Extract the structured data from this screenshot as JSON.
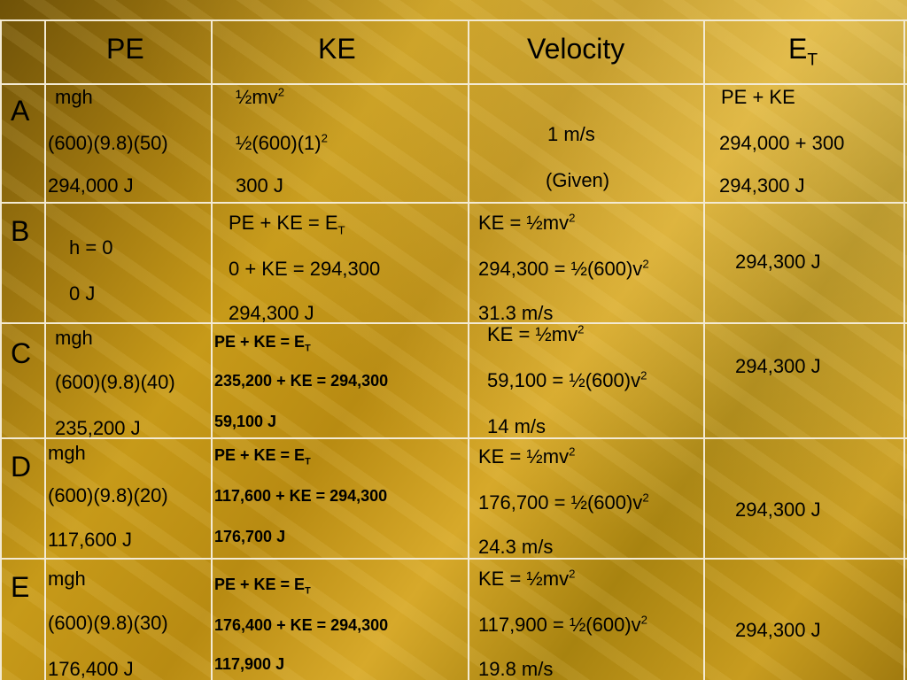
{
  "headers": [
    "PE",
    "KE",
    "Velocity",
    "E",
    "T"
  ],
  "rows": [
    {
      "label": "A",
      "pe": [
        "mgh",
        "(600)(9.8)(50)",
        "294,000 J"
      ],
      "ke": [
        "½mv",
        "2",
        "½(600)(1)",
        "2",
        "300 J"
      ],
      "velocity": [
        "1 m/s",
        "(Given)"
      ],
      "et": [
        "PE + KE",
        "294,000 + 300",
        "294,300 J"
      ]
    },
    {
      "label": "B",
      "pe": [
        "h = 0",
        "0 J"
      ],
      "ke": [
        "PE + KE = E",
        "T",
        "0 + KE = 294,300",
        "294,300 J"
      ],
      "velocity": [
        "KE = ½mv",
        "2",
        "294,300 = ½(600)v",
        "2",
        "31.3 m/s"
      ],
      "et": [
        "294,300 J"
      ]
    },
    {
      "label": "C",
      "pe": [
        "mgh",
        "(600)(9.8)(40)",
        "235,200 J"
      ],
      "ke": [
        "PE + KE = E",
        "T",
        "235,200 + KE = 294,300",
        "59,100 J"
      ],
      "velocity": [
        "KE = ½mv",
        "2",
        "59,100 = ½(600)v",
        "2",
        "14 m/s"
      ],
      "et": [
        "294,300 J"
      ]
    },
    {
      "label": "D",
      "pe": [
        "mgh",
        "(600)(9.8)(20)",
        "117,600 J"
      ],
      "ke": [
        "PE + KE = E",
        "T",
        "117,600 + KE = 294,300",
        "176,700 J"
      ],
      "velocity": [
        "KE = ½mv",
        "2",
        "176,700 = ½(600)v",
        "2",
        "24.3 m/s"
      ],
      "et": [
        "294,300 J"
      ]
    },
    {
      "label": "E",
      "pe": [
        "mgh",
        "(600)(9.8)(30)",
        "176,400 J"
      ],
      "ke": [
        "PE + KE = E",
        "T",
        "176,400 + KE = 294,300",
        "117,900 J"
      ],
      "velocity": [
        "KE = ½mv",
        "2",
        "117,900 = ½(600)v",
        "2",
        "19.8 m/s"
      ],
      "et": [
        "294,300 J"
      ]
    }
  ]
}
